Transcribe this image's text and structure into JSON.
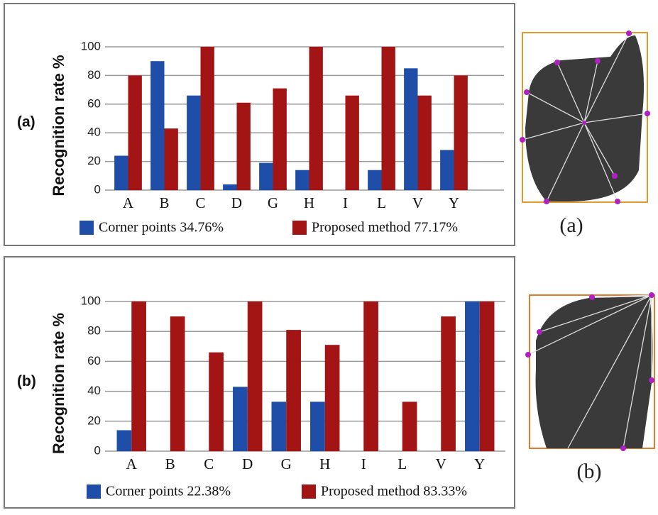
{
  "chart_data": [
    {
      "type": "bar",
      "panel_label": "(a)",
      "ylabel": "Recognition rate %",
      "categories": [
        "A",
        "B",
        "C",
        "D",
        "G",
        "H",
        "I",
        "L",
        "V",
        "Y"
      ],
      "series": [
        {
          "name": "Corner points 34.76%",
          "color": "#1f4ea8",
          "values": [
            24,
            90,
            66,
            4,
            19,
            14,
            0,
            14,
            85,
            28
          ]
        },
        {
          "name": "Proposed method 77.17%",
          "color": "#a31515",
          "values": [
            80,
            43,
            100,
            61,
            71,
            100,
            66,
            100,
            66,
            80
          ]
        }
      ],
      "ylim": [
        0,
        100
      ],
      "yticks": [
        0,
        20,
        40,
        60,
        80,
        100
      ],
      "grid": true
    },
    {
      "type": "bar",
      "panel_label": "(b)",
      "ylabel": "Recognition rate %",
      "categories": [
        "A",
        "B",
        "C",
        "D",
        "G",
        "H",
        "I",
        "L",
        "V",
        "Y"
      ],
      "series": [
        {
          "name": "Corner points 22.38%",
          "color": "#1f4ea8",
          "values": [
            14,
            0,
            0,
            43,
            33,
            33,
            0,
            0,
            0,
            100
          ]
        },
        {
          "name": "Proposed method 83.33%",
          "color": "#a31515",
          "values": [
            100,
            90,
            66,
            100,
            81,
            71,
            100,
            33,
            90,
            100
          ]
        }
      ],
      "ylim": [
        0,
        100
      ],
      "yticks": [
        0,
        20,
        40,
        60,
        80,
        100
      ],
      "grid": true
    }
  ],
  "images": [
    {
      "label": "(a)"
    },
    {
      "label": "(b)"
    }
  ]
}
